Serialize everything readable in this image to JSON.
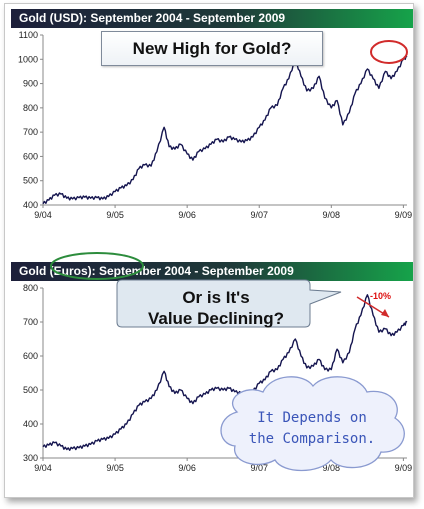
{
  "colors": {
    "line": "#15154f",
    "accent_red": "#d12b2b",
    "accent_green": "#2c8c3c",
    "cloud_text": "#3a55b8",
    "title_bar_start": "#1d1f3a",
    "title_bar_end": "#16a34a"
  },
  "annotations": {
    "usd_callout": "New High for Gold?",
    "eur_callout_line1": "Or is It's",
    "eur_callout_line2": "Value Declining?",
    "decline_label": "-10%",
    "cloud_line1": "It Depends on",
    "cloud_line2": "the Comparison."
  },
  "chart_data": [
    {
      "type": "line",
      "title": "Gold (USD): September 2004 - September 2009",
      "xlabel": "",
      "ylabel": "",
      "x_ticks": [
        "9/04",
        "9/05",
        "9/06",
        "9/07",
        "9/08",
        "9/09"
      ],
      "y_ticks": [
        400,
        500,
        600,
        700,
        800,
        900,
        1000,
        1100
      ],
      "ylim": [
        400,
        1100
      ],
      "xlim": [
        2004.67,
        2009.72
      ],
      "grid": false,
      "series": [
        {
          "values": [
            [
              2004.67,
              405
            ],
            [
              2004.75,
              420
            ],
            [
              2004.83,
              440
            ],
            [
              2004.92,
              445
            ],
            [
              2005.0,
              428
            ],
            [
              2005.08,
              425
            ],
            [
              2005.17,
              430
            ],
            [
              2005.25,
              432
            ],
            [
              2005.33,
              428
            ],
            [
              2005.42,
              430
            ],
            [
              2005.5,
              425
            ],
            [
              2005.58,
              435
            ],
            [
              2005.67,
              455
            ],
            [
              2005.75,
              470
            ],
            [
              2005.83,
              480
            ],
            [
              2005.92,
              505
            ],
            [
              2006.0,
              550
            ],
            [
              2006.08,
              565
            ],
            [
              2006.17,
              560
            ],
            [
              2006.25,
              620
            ],
            [
              2006.35,
              720
            ],
            [
              2006.42,
              640
            ],
            [
              2006.5,
              630
            ],
            [
              2006.58,
              650
            ],
            [
              2006.67,
              610
            ],
            [
              2006.75,
              585
            ],
            [
              2006.83,
              620
            ],
            [
              2006.92,
              632
            ],
            [
              2007.0,
              650
            ],
            [
              2007.08,
              670
            ],
            [
              2007.17,
              660
            ],
            [
              2007.25,
              680
            ],
            [
              2007.33,
              670
            ],
            [
              2007.42,
              660
            ],
            [
              2007.5,
              665
            ],
            [
              2007.58,
              680
            ],
            [
              2007.67,
              720
            ],
            [
              2007.75,
              750
            ],
            [
              2007.83,
              800
            ],
            [
              2007.92,
              810
            ],
            [
              2008.0,
              880
            ],
            [
              2008.08,
              920
            ],
            [
              2008.17,
              1000
            ],
            [
              2008.25,
              930
            ],
            [
              2008.33,
              870
            ],
            [
              2008.42,
              880
            ],
            [
              2008.5,
              930
            ],
            [
              2008.58,
              840
            ],
            [
              2008.67,
              800
            ],
            [
              2008.75,
              830
            ],
            [
              2008.83,
              730
            ],
            [
              2008.92,
              780
            ],
            [
              2009.0,
              860
            ],
            [
              2009.08,
              900
            ],
            [
              2009.17,
              960
            ],
            [
              2009.25,
              920
            ],
            [
              2009.33,
              880
            ],
            [
              2009.42,
              950
            ],
            [
              2009.5,
              920
            ],
            [
              2009.58,
              950
            ],
            [
              2009.67,
              1000
            ],
            [
              2009.72,
              1010
            ]
          ]
        }
      ]
    },
    {
      "type": "line",
      "title": "Gold (Euros): September 2004 - September 2009",
      "xlabel": "",
      "ylabel": "",
      "x_ticks": [
        "9/04",
        "9/05",
        "9/06",
        "9/07",
        "9/08",
        "9/09"
      ],
      "y_ticks": [
        300,
        400,
        500,
        600,
        700,
        800
      ],
      "ylim": [
        300,
        800
      ],
      "xlim": [
        2004.67,
        2009.72
      ],
      "grid": false,
      "series": [
        {
          "values": [
            [
              2004.67,
              333
            ],
            [
              2004.75,
              338
            ],
            [
              2004.83,
              345
            ],
            [
              2004.92,
              335
            ],
            [
              2005.0,
              325
            ],
            [
              2005.08,
              328
            ],
            [
              2005.17,
              330
            ],
            [
              2005.25,
              335
            ],
            [
              2005.33,
              340
            ],
            [
              2005.42,
              350
            ],
            [
              2005.5,
              355
            ],
            [
              2005.58,
              358
            ],
            [
              2005.67,
              370
            ],
            [
              2005.75,
              385
            ],
            [
              2005.83,
              400
            ],
            [
              2005.92,
              430
            ],
            [
              2006.0,
              455
            ],
            [
              2006.08,
              465
            ],
            [
              2006.17,
              475
            ],
            [
              2006.25,
              500
            ],
            [
              2006.35,
              555
            ],
            [
              2006.42,
              510
            ],
            [
              2006.5,
              490
            ],
            [
              2006.58,
              500
            ],
            [
              2006.67,
              475
            ],
            [
              2006.75,
              460
            ],
            [
              2006.83,
              480
            ],
            [
              2006.92,
              488
            ],
            [
              2007.0,
              500
            ],
            [
              2007.08,
              505
            ],
            [
              2007.17,
              500
            ],
            [
              2007.25,
              505
            ],
            [
              2007.33,
              495
            ],
            [
              2007.42,
              490
            ],
            [
              2007.5,
              485
            ],
            [
              2007.58,
              495
            ],
            [
              2007.67,
              520
            ],
            [
              2007.75,
              530
            ],
            [
              2007.83,
              555
            ],
            [
              2007.92,
              560
            ],
            [
              2008.0,
              590
            ],
            [
              2008.08,
              610
            ],
            [
              2008.17,
              650
            ],
            [
              2008.25,
              600
            ],
            [
              2008.33,
              565
            ],
            [
              2008.42,
              570
            ],
            [
              2008.5,
              590
            ],
            [
              2008.58,
              560
            ],
            [
              2008.67,
              560
            ],
            [
              2008.75,
              620
            ],
            [
              2008.83,
              580
            ],
            [
              2008.92,
              610
            ],
            [
              2009.0,
              680
            ],
            [
              2009.08,
              720
            ],
            [
              2009.17,
              780
            ],
            [
              2009.25,
              720
            ],
            [
              2009.33,
              670
            ],
            [
              2009.42,
              680
            ],
            [
              2009.5,
              660
            ],
            [
              2009.58,
              670
            ],
            [
              2009.67,
              690
            ],
            [
              2009.72,
              700
            ]
          ]
        }
      ]
    }
  ]
}
